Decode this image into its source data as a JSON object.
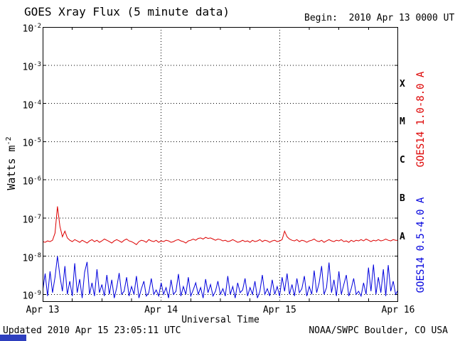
{
  "header": {
    "title": "GOES Xray Flux (5 minute data)",
    "begin": "Begin:  2010 Apr 13 0000 UTC"
  },
  "axes": {
    "y_title_base": "Watts m",
    "y_title_sup": "-2"
  },
  "footer": {
    "updated": "Updated 2010 Apr 15 23:05:11 UTC",
    "credit": "NOAA/SWPC Boulder, CO USA",
    "partial_element_color": "#2e3fbe"
  },
  "chart_data": {
    "type": "line",
    "title": "GOES Xray Flux (5 minute data)",
    "xlabel": "Universal Time",
    "ylabel": "Watts m^-2",
    "x_unit": "hours since 2010 Apr 13 0000 UTC",
    "x_range_hours": [
      0,
      72
    ],
    "y_scale": "log",
    "y_log_range": [
      -9.2,
      -2
    ],
    "y_tick_exponents": [
      -2,
      -3,
      -4,
      -5,
      -6,
      -7,
      -8,
      -9
    ],
    "y_gridline_exponents": [
      -3,
      -4,
      -5,
      -6,
      -7,
      -8,
      -9
    ],
    "x_gridlines_hours": [
      24,
      48
    ],
    "x_minor_ticks_hours": [
      6,
      12,
      18,
      30,
      36,
      42,
      54,
      60,
      66
    ],
    "x_day_ticks": [
      {
        "t": 0,
        "label": "Apr 13"
      },
      {
        "t": 24,
        "label": "Apr 14"
      },
      {
        "t": 48,
        "label": "Apr 15"
      },
      {
        "t": 72,
        "label": "Apr 16"
      }
    ],
    "flare_classes": [
      {
        "label": "X",
        "log_center": -3.5
      },
      {
        "label": "M",
        "log_center": -4.5
      },
      {
        "label": "C",
        "log_center": -5.5
      },
      {
        "label": "B",
        "log_center": -6.5
      },
      {
        "label": "A",
        "log_center": -7.5
      }
    ],
    "legend_position": "right-rotated",
    "grid": "dotted",
    "series": [
      {
        "name": "GOES14 1.0-8.0 A",
        "color": "#dd0000",
        "scale": 1e-08,
        "x_start": 0,
        "x_step_hours": 0.5,
        "values": [
          2.4,
          2.3,
          2.5,
          2.4,
          2.6,
          4.0,
          20.0,
          6.0,
          3.2,
          4.5,
          3.0,
          2.6,
          2.4,
          2.7,
          2.5,
          2.3,
          2.6,
          2.4,
          2.2,
          2.5,
          2.7,
          2.4,
          2.6,
          2.3,
          2.5,
          2.8,
          2.6,
          2.4,
          2.2,
          2.5,
          2.7,
          2.5,
          2.3,
          2.6,
          2.8,
          2.5,
          2.4,
          2.2,
          2.0,
          2.4,
          2.6,
          2.5,
          2.3,
          2.7,
          2.5,
          2.4,
          2.6,
          2.3,
          2.5,
          2.4,
          2.6,
          2.5,
          2.3,
          2.4,
          2.6,
          2.7,
          2.5,
          2.4,
          2.2,
          2.5,
          2.6,
          2.8,
          2.6,
          2.9,
          3.0,
          2.8,
          3.1,
          2.9,
          3.0,
          2.8,
          2.6,
          2.8,
          2.7,
          2.5,
          2.6,
          2.4,
          2.5,
          2.7,
          2.5,
          2.3,
          2.4,
          2.6,
          2.4,
          2.5,
          2.3,
          2.6,
          2.4,
          2.5,
          2.7,
          2.4,
          2.6,
          2.5,
          2.3,
          2.5,
          2.6,
          2.4,
          2.5,
          2.7,
          4.5,
          3.2,
          2.8,
          2.6,
          2.5,
          2.7,
          2.4,
          2.6,
          2.5,
          2.3,
          2.5,
          2.6,
          2.8,
          2.5,
          2.4,
          2.6,
          2.3,
          2.5,
          2.7,
          2.5,
          2.4,
          2.6,
          2.5,
          2.7,
          2.4,
          2.5,
          2.3,
          2.6,
          2.4,
          2.6,
          2.5,
          2.7,
          2.5,
          2.8,
          2.6,
          2.4,
          2.6,
          2.5,
          2.7,
          2.5,
          2.6,
          2.8,
          2.6,
          2.5,
          2.7,
          2.6,
          2.6
        ]
      },
      {
        "name": "GOES14 0.5-4.0 A",
        "color": "#0000dd",
        "scale": 1e-09,
        "x_start": 0,
        "x_step_hours": 0.5,
        "values": [
          1.2,
          3.5,
          0.9,
          4.0,
          1.1,
          2.8,
          10.0,
          3.0,
          1.2,
          5.5,
          1.0,
          2.2,
          0.9,
          6.5,
          1.1,
          2.5,
          0.8,
          3.8,
          7.0,
          1.0,
          2.0,
          0.9,
          4.5,
          1.1,
          1.8,
          0.9,
          3.2,
          1.0,
          2.4,
          0.8,
          1.5,
          3.6,
          1.0,
          1.2,
          2.8,
          0.9,
          1.6,
          1.0,
          3.0,
          0.8,
          1.4,
          2.2,
          0.9,
          1.1,
          2.6,
          1.0,
          1.3,
          0.9,
          2.0,
          1.0,
          1.5,
          0.8,
          2.4,
          1.0,
          1.2,
          3.4,
          0.9,
          1.6,
          1.0,
          2.8,
          0.9,
          1.3,
          2.0,
          1.0,
          1.5,
          0.8,
          2.5,
          1.1,
          1.8,
          0.9,
          1.2,
          2.2,
          1.0,
          1.4,
          0.9,
          3.0,
          1.0,
          1.6,
          0.8,
          2.0,
          1.1,
          1.3,
          2.6,
          0.9,
          1.5,
          1.0,
          2.2,
          0.8,
          1.2,
          3.2,
          1.0,
          1.4,
          0.9,
          2.4,
          1.0,
          1.6,
          0.9,
          2.8,
          1.2,
          3.5,
          1.0,
          1.8,
          0.9,
          2.6,
          1.1,
          1.4,
          3.0,
          0.9,
          1.6,
          1.0,
          4.2,
          1.1,
          2.0,
          5.5,
          1.0,
          1.5,
          6.8,
          1.1,
          2.4,
          0.9,
          4.0,
          1.0,
          1.8,
          3.2,
          0.9,
          1.4,
          2.6,
          1.0,
          1.2,
          0.9,
          2.0,
          1.0,
          5.0,
          1.2,
          6.0,
          1.0,
          2.8,
          1.1,
          4.5,
          0.9,
          5.8,
          1.2,
          2.2,
          1.0,
          1.3
        ]
      }
    ]
  }
}
